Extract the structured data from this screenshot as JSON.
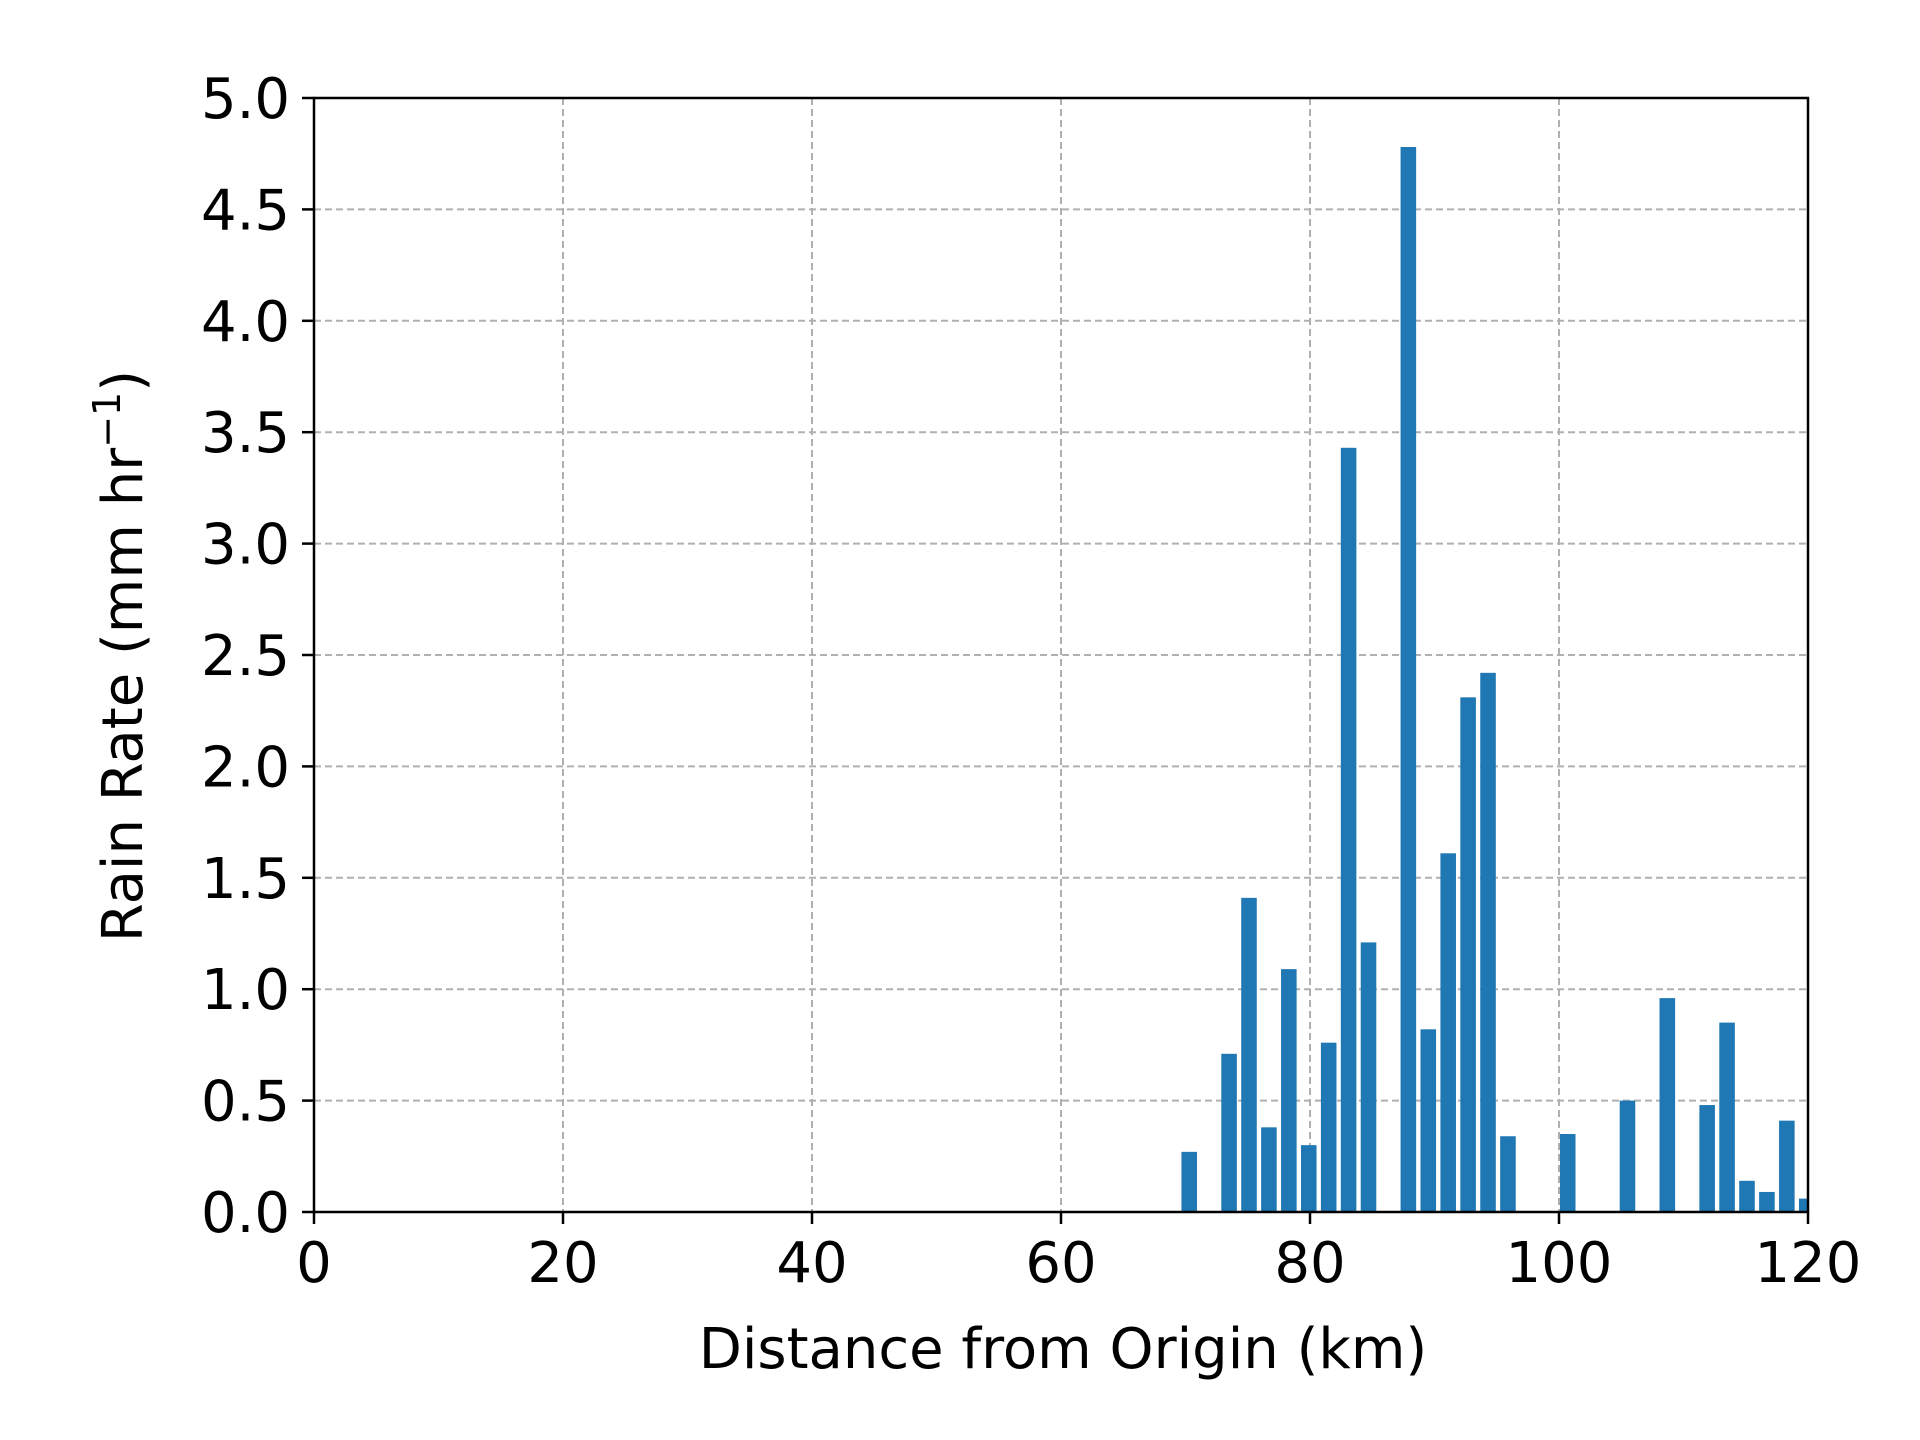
{
  "chart_data": {
    "type": "bar",
    "xlabel": "Distance from Origin (km)",
    "ylabel_main": "Rain Rate (mm hr",
    "ylabel_sup": "−1",
    "ylabel_close": ")",
    "xlim": [
      0,
      120
    ],
    "ylim": [
      0,
      5.0
    ],
    "xticks": [
      {
        "value": 0,
        "label": "0"
      },
      {
        "value": 20,
        "label": "20"
      },
      {
        "value": 40,
        "label": "40"
      },
      {
        "value": 60,
        "label": "60"
      },
      {
        "value": 80,
        "label": "80"
      },
      {
        "value": 100,
        "label": "100"
      },
      {
        "value": 120,
        "label": "120"
      }
    ],
    "yticks": [
      {
        "value": 0.0,
        "label": "0.0"
      },
      {
        "value": 0.5,
        "label": "0.5"
      },
      {
        "value": 1.0,
        "label": "1.0"
      },
      {
        "value": 1.5,
        "label": "1.5"
      },
      {
        "value": 2.0,
        "label": "2.0"
      },
      {
        "value": 2.5,
        "label": "2.5"
      },
      {
        "value": 3.0,
        "label": "3.0"
      },
      {
        "value": 3.5,
        "label": "3.5"
      },
      {
        "value": 4.0,
        "label": "4.0"
      },
      {
        "value": 4.5,
        "label": "4.5"
      },
      {
        "value": 5.0,
        "label": "5.0"
      }
    ],
    "grid": true,
    "bar_width": 1.25,
    "bar_color": "#1f77b4",
    "points": [
      {
        "x": 70.3,
        "y": 0.27
      },
      {
        "x": 73.5,
        "y": 0.71
      },
      {
        "x": 75.1,
        "y": 1.41
      },
      {
        "x": 76.7,
        "y": 0.38
      },
      {
        "x": 78.3,
        "y": 1.09
      },
      {
        "x": 79.9,
        "y": 0.3
      },
      {
        "x": 81.5,
        "y": 0.76
      },
      {
        "x": 83.1,
        "y": 3.43
      },
      {
        "x": 84.7,
        "y": 1.21
      },
      {
        "x": 87.9,
        "y": 4.78
      },
      {
        "x": 89.5,
        "y": 0.82
      },
      {
        "x": 91.1,
        "y": 1.61
      },
      {
        "x": 92.7,
        "y": 2.31
      },
      {
        "x": 94.3,
        "y": 2.42
      },
      {
        "x": 95.9,
        "y": 0.34
      },
      {
        "x": 100.7,
        "y": 0.35
      },
      {
        "x": 105.5,
        "y": 0.5
      },
      {
        "x": 108.7,
        "y": 0.96
      },
      {
        "x": 111.9,
        "y": 0.48
      },
      {
        "x": 113.5,
        "y": 0.85
      },
      {
        "x": 115.1,
        "y": 0.14
      },
      {
        "x": 116.7,
        "y": 0.09
      },
      {
        "x": 118.3,
        "y": 0.41
      },
      {
        "x": 119.9,
        "y": 0.06
      }
    ]
  }
}
